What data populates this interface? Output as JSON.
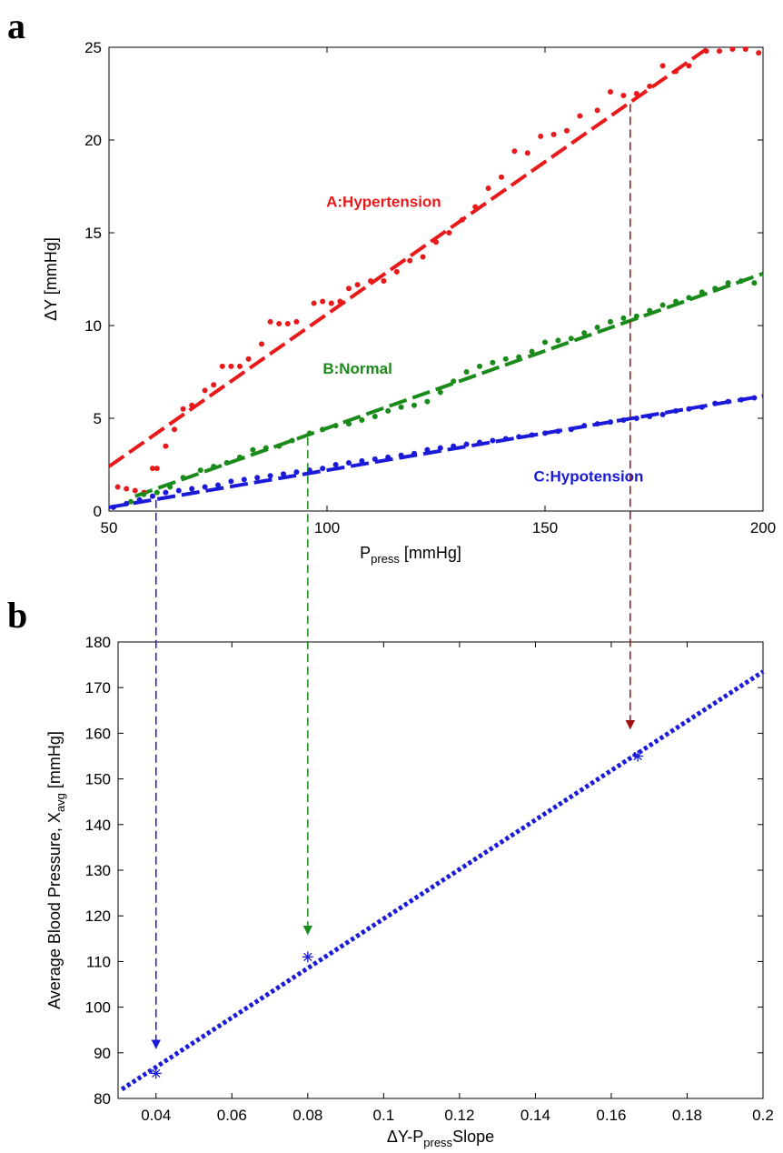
{
  "chart_data": [
    {
      "panel": "a",
      "type": "scatter",
      "xlabel": {
        "main": "P",
        "sub": "press",
        "unit": " [mmHg]"
      },
      "ylabel": "ΔY [mmHg]",
      "xlim": [
        50,
        200
      ],
      "ylim": [
        0,
        25
      ],
      "xticks": [
        50,
        100,
        150,
        200
      ],
      "yticks": [
        0,
        5,
        10,
        15,
        20,
        25
      ],
      "grid": false,
      "series": [
        {
          "name": "A:Hypertension",
          "color": "#e8191b",
          "points": [
            [
              52,
              1.3
            ],
            [
              54,
              1.2
            ],
            [
              56,
              1.1
            ],
            [
              58,
              1.0
            ],
            [
              60,
              2.3
            ],
            [
              61,
              2.3
            ],
            [
              63,
              3.5
            ],
            [
              65,
              4.4
            ],
            [
              67,
              5.5
            ],
            [
              69,
              5.7
            ],
            [
              72,
              6.5
            ],
            [
              74,
              6.8
            ],
            [
              76,
              7.8
            ],
            [
              78,
              7.8
            ],
            [
              80,
              7.8
            ],
            [
              82,
              8.2
            ],
            [
              85,
              9.0
            ],
            [
              87,
              10.2
            ],
            [
              89,
              10.1
            ],
            [
              91,
              10.1
            ],
            [
              93,
              10.2
            ],
            [
              97,
              11.2
            ],
            [
              99,
              11.3
            ],
            [
              101,
              11.2
            ],
            [
              103,
              11.3
            ],
            [
              105,
              12.0
            ],
            [
              107,
              12.2
            ],
            [
              110,
              12.4
            ],
            [
              113,
              12.4
            ],
            [
              116,
              12.9
            ],
            [
              119,
              13.5
            ],
            [
              122,
              13.7
            ],
            [
              125,
              14.5
            ],
            [
              128,
              15.0
            ],
            [
              131,
              15.7
            ],
            [
              134,
              16.4
            ],
            [
              137,
              17.4
            ],
            [
              140,
              18.0
            ],
            [
              143,
              19.4
            ],
            [
              146,
              19.3
            ],
            [
              149,
              20.2
            ],
            [
              152,
              20.3
            ],
            [
              155,
              20.5
            ],
            [
              158,
              21.3
            ],
            [
              162,
              21.6
            ],
            [
              165,
              22.6
            ],
            [
              168,
              22.4
            ],
            [
              171,
              22.5
            ],
            [
              174,
              22.9
            ],
            [
              177,
              24.0
            ],
            [
              180,
              23.7
            ],
            [
              183,
              24.0
            ],
            [
              187,
              24.8
            ],
            [
              190,
              24.8
            ],
            [
              193,
              24.9
            ],
            [
              196,
              24.9
            ],
            [
              199,
              24.7
            ]
          ],
          "fit": {
            "x": [
              50,
              187
            ],
            "y": [
              2.4,
              24.9
            ]
          }
        },
        {
          "name": "B:Normal",
          "color": "#1a8a1a",
          "points": [
            [
              55,
              0.5
            ],
            [
              58,
              0.9
            ],
            [
              61,
              1.0
            ],
            [
              64,
              1.3
            ],
            [
              67,
              1.8
            ],
            [
              71,
              2.2
            ],
            [
              74,
              2.4
            ],
            [
              77,
              2.6
            ],
            [
              80,
              2.9
            ],
            [
              83,
              3.3
            ],
            [
              86,
              3.4
            ],
            [
              89,
              3.5
            ],
            [
              92,
              3.8
            ],
            [
              96,
              4.2
            ],
            [
              99,
              4.4
            ],
            [
              102,
              4.6
            ],
            [
              105,
              4.7
            ],
            [
              108,
              4.9
            ],
            [
              111,
              5.1
            ],
            [
              114,
              5.4
            ],
            [
              117,
              5.6
            ],
            [
              120,
              5.7
            ],
            [
              123,
              5.9
            ],
            [
              126,
              6.4
            ],
            [
              129,
              7.0
            ],
            [
              132,
              7.5
            ],
            [
              135,
              7.8
            ],
            [
              138,
              8.0
            ],
            [
              141,
              8.2
            ],
            [
              144,
              8.3
            ],
            [
              147,
              8.6
            ],
            [
              150,
              9.1
            ],
            [
              153,
              9.2
            ],
            [
              156,
              9.3
            ],
            [
              159,
              9.6
            ],
            [
              162,
              9.9
            ],
            [
              165,
              10.2
            ],
            [
              168,
              10.4
            ],
            [
              171,
              10.5
            ],
            [
              174,
              10.8
            ],
            [
              177,
              11.1
            ],
            [
              180,
              11.3
            ],
            [
              183,
              11.5
            ],
            [
              186,
              11.8
            ],
            [
              189,
              12.0
            ],
            [
              192,
              12.3
            ],
            [
              195,
              12.4
            ],
            [
              198,
              12.3
            ]
          ],
          "fit": {
            "x": [
              56,
              200
            ],
            "y": [
              0.8,
              12.8
            ]
          }
        },
        {
          "name": "C:Hypotension",
          "color": "#1a1ad8",
          "points": [
            [
              51,
              0.2
            ],
            [
              54,
              0.4
            ],
            [
              57,
              0.6
            ],
            [
              60,
              0.8
            ],
            [
              63,
              1.0
            ],
            [
              66,
              1.1
            ],
            [
              69,
              1.2
            ],
            [
              72,
              1.3
            ],
            [
              75,
              1.4
            ],
            [
              78,
              1.6
            ],
            [
              81,
              1.7
            ],
            [
              84,
              1.8
            ],
            [
              87,
              1.9
            ],
            [
              90,
              2.0
            ],
            [
              93,
              2.1
            ],
            [
              96,
              2.2
            ],
            [
              99,
              2.3
            ],
            [
              102,
              2.5
            ],
            [
              105,
              2.6
            ],
            [
              108,
              2.7
            ],
            [
              111,
              2.8
            ],
            [
              114,
              2.9
            ],
            [
              117,
              3.0
            ],
            [
              120,
              3.1
            ],
            [
              123,
              3.3
            ],
            [
              126,
              3.4
            ],
            [
              129,
              3.5
            ],
            [
              132,
              3.6
            ],
            [
              135,
              3.7
            ],
            [
              138,
              3.8
            ],
            [
              141,
              3.9
            ],
            [
              144,
              4.0
            ],
            [
              147,
              4.1
            ],
            [
              150,
              4.2
            ],
            [
              153,
              4.3
            ],
            [
              156,
              4.4
            ],
            [
              159,
              4.6
            ],
            [
              162,
              4.7
            ],
            [
              165,
              4.8
            ],
            [
              168,
              4.9
            ],
            [
              171,
              5.0
            ],
            [
              174,
              5.1
            ],
            [
              177,
              5.2
            ],
            [
              180,
              5.4
            ],
            [
              183,
              5.5
            ],
            [
              186,
              5.6
            ],
            [
              189,
              5.8
            ],
            [
              192,
              5.9
            ],
            [
              195,
              6.0
            ],
            [
              198,
              6.1
            ]
          ],
          "fit": {
            "x": [
              50,
              200
            ],
            "y": [
              0.2,
              6.2
            ]
          }
        }
      ],
      "annotations": [
        {
          "text": "A:Hypertension",
          "series": 0,
          "x": 113,
          "y": 16.4
        },
        {
          "text": "B:Normal",
          "series": 1,
          "x": 107,
          "y": 7.4
        },
        {
          "text": "C:Hypotension",
          "series": 2,
          "x": 160,
          "y": 1.6
        }
      ]
    },
    {
      "panel": "b",
      "type": "scatter",
      "xlabel": {
        "main": "ΔY-P",
        "sub": "press",
        "unit": "Slope"
      },
      "ylabel": {
        "main": "Average Blood Pressure, X",
        "sub": "avg",
        "unit": " [mmHg]"
      },
      "xlim": [
        0.03,
        0.2
      ],
      "ylim": [
        80,
        180
      ],
      "xticks": [
        0.04,
        0.06,
        0.08,
        0.1,
        0.12,
        0.14,
        0.16,
        0.18,
        0.2
      ],
      "xtick_labels": [
        "0.04",
        "0.06",
        "0.08",
        "0.1",
        "0.12",
        "0.14",
        "0.16",
        "0.18",
        "0.2"
      ],
      "yticks": [
        80,
        90,
        100,
        110,
        120,
        130,
        140,
        150,
        160,
        170,
        180
      ],
      "grid": false,
      "points": [
        [
          0.04,
          85.5
        ],
        [
          0.08,
          111
        ],
        [
          0.167,
          155
        ]
      ],
      "point_color": "#1a1ad8",
      "fit": {
        "x": [
          0.031,
          0.2
        ],
        "y": [
          82,
          173.5
        ],
        "color": "#1a1ad8"
      }
    }
  ],
  "figure": {
    "panel_letters": [
      "a",
      "b"
    ],
    "arrows": [
      {
        "color": "#1a1ad8",
        "x_slope": 0.04,
        "y_avg": 91,
        "p_press": 60
      },
      {
        "color": "#1a8a1a",
        "x_slope": 0.08,
        "y_avg": 116,
        "p_press": 94
      },
      {
        "color": "#a01010",
        "x_slope": 0.165,
        "y_avg": 161,
        "p_press": 169
      }
    ]
  }
}
